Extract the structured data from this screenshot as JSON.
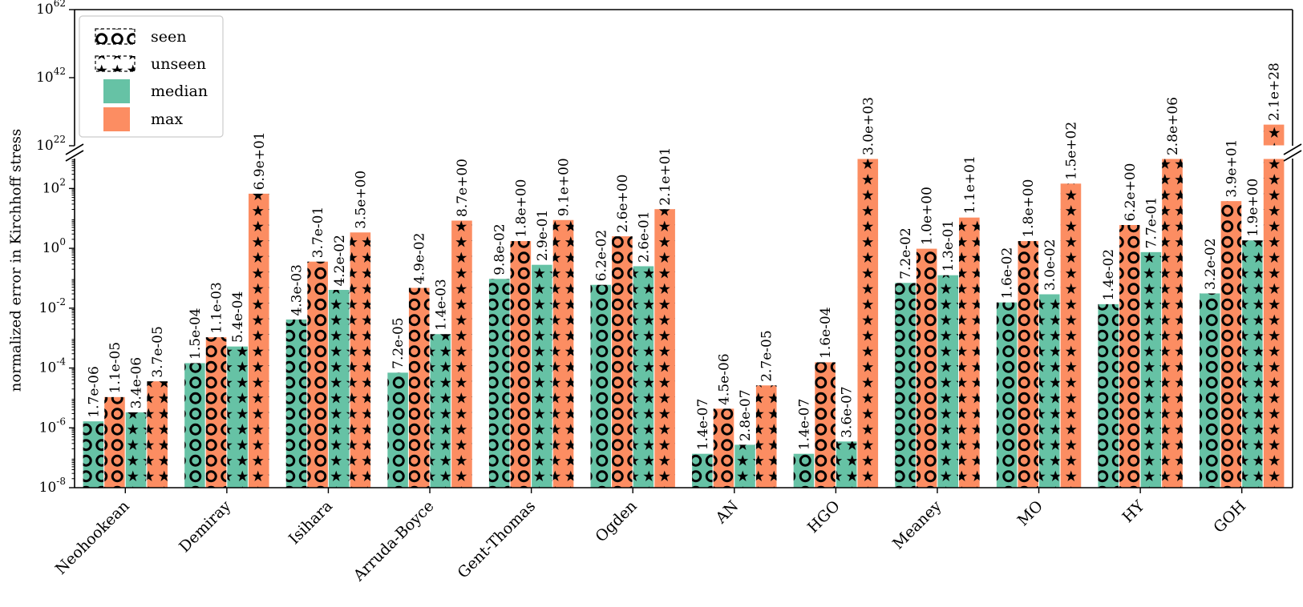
{
  "chart_data": {
    "type": "bar",
    "title": "",
    "xlabel": "",
    "ylabel": "normalized error in Kirchhoff stress",
    "yscale": "log",
    "broken_axis": true,
    "ylim_lower": [
      1e-08,
      1000
    ],
    "ylim_upper": [
      1e+22,
      1e+62
    ],
    "yticks_lower": [
      "10^-8",
      "10^-6",
      "10^-4",
      "10^-2",
      "10^0",
      "10^2"
    ],
    "yticks_upper": [
      "10^22",
      "10^42",
      "10^62"
    ],
    "grid": false,
    "legend_position": "top-left",
    "categories": [
      "Neohookean",
      "Demiray",
      "Isihara",
      "Arruda-Boyce",
      "Gent-Thomas",
      "Ogden",
      "AN",
      "HGO",
      "Meaney",
      "MO",
      "HY",
      "GOH"
    ],
    "series": [
      {
        "name": "seen median",
        "color": "#66c2a5",
        "hatch": "circles",
        "values": [
          1.7e-06,
          0.00015,
          0.0043,
          7.2e-05,
          0.098,
          0.062,
          1.4e-07,
          1.4e-07,
          0.072,
          0.016,
          0.014,
          0.032
        ],
        "labels": [
          "1.7e-06",
          "1.5e-04",
          "4.3e-03",
          "7.2e-05",
          "9.8e-02",
          "6.2e-02",
          "1.4e-07",
          "1.4e-07",
          "7.2e-02",
          "1.6e-02",
          "1.4e-02",
          "3.2e-02"
        ]
      },
      {
        "name": "seen max",
        "color": "#fc8d62",
        "hatch": "circles",
        "values": [
          1.1e-05,
          0.0011,
          0.37,
          0.049,
          1.8,
          2.6,
          4.5e-06,
          0.00016,
          1.0,
          1.8,
          6.2,
          39.0
        ],
        "labels": [
          "1.1e-05",
          "1.1e-03",
          "3.7e-01",
          "4.9e-02",
          "1.8e+00",
          "2.6e+00",
          "4.5e-06",
          "1.6e-04",
          "1.0e+00",
          "1.8e+00",
          "6.2e+00",
          "3.9e+01"
        ]
      },
      {
        "name": "unseen median",
        "color": "#66c2a5",
        "hatch": "stars",
        "values": [
          3.4e-06,
          0.00054,
          0.042,
          0.0014,
          0.29,
          0.26,
          2.8e-07,
          3.6e-07,
          0.13,
          0.03,
          0.77,
          1.9
        ],
        "labels": [
          "3.4e-06",
          "5.4e-04",
          "4.2e-02",
          "1.4e-03",
          "2.9e-01",
          "2.6e-01",
          "2.8e-07",
          "3.6e-07",
          "1.3e-01",
          "3.0e-02",
          "7.7e-01",
          "1.9e+00"
        ]
      },
      {
        "name": "unseen max",
        "color": "#fc8d62",
        "hatch": "stars",
        "values": [
          3.7e-05,
          69.0,
          3.5,
          8.7,
          9.1,
          21.0,
          2.7e-05,
          3000.0,
          11.0,
          150.0,
          2800000.0,
          2.1e+28
        ],
        "labels": [
          "3.7e-05",
          "6.9e+01",
          "3.5e+00",
          "8.7e+00",
          "9.1e+00",
          "2.1e+01",
          "2.7e-05",
          "3.0e+03",
          "1.1e+01",
          "1.5e+02",
          "2.8e+06",
          "2.1e+28"
        ]
      }
    ],
    "legend": [
      {
        "label": "seen",
        "kind": "hatch-circles"
      },
      {
        "label": "unseen",
        "kind": "hatch-stars"
      },
      {
        "label": "median",
        "color": "#66c2a5"
      },
      {
        "label": "max",
        "color": "#fc8d62"
      }
    ]
  }
}
